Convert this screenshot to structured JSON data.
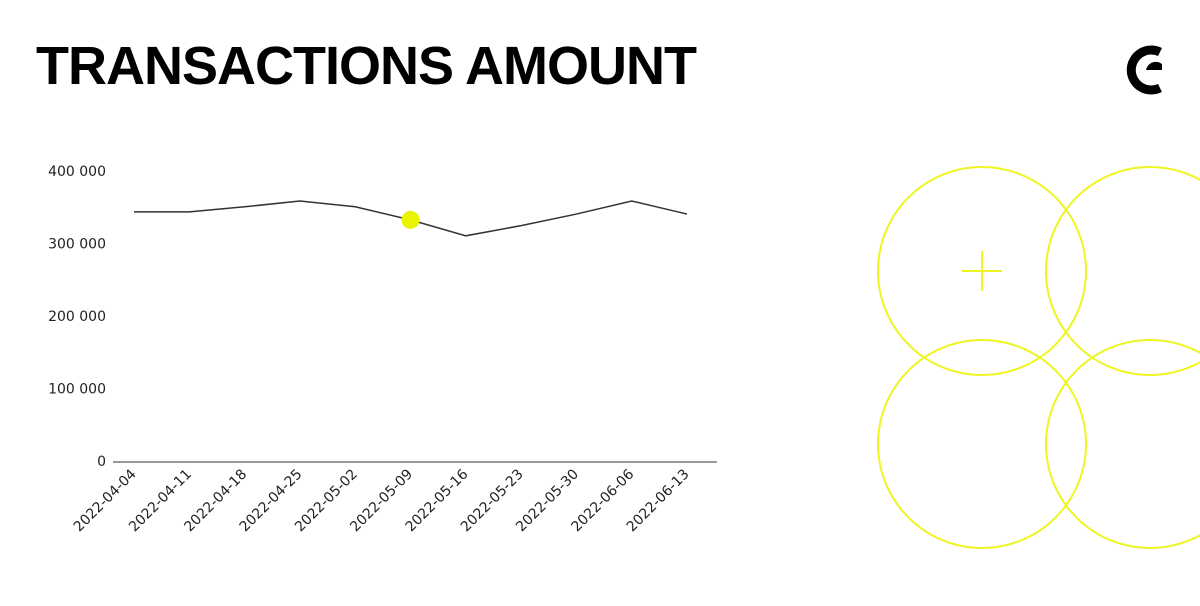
{
  "chart_data": {
    "type": "line",
    "title": "TRANSACTIONS AMOUNT",
    "categories": [
      "2022-04-04",
      "2022-04-11",
      "2022-04-18",
      "2022-04-25",
      "2022-05-02",
      "2022-05-09",
      "2022-05-16",
      "2022-05-23",
      "2022-05-30",
      "2022-06-06",
      "2022-06-13"
    ],
    "values": [
      345000,
      345000,
      352000,
      360000,
      352000,
      334000,
      312000,
      326000,
      342000,
      360000,
      342000
    ],
    "color": "#333333",
    "highlight_index": 5,
    "highlight_color": "#e9f500",
    "ylim": [
      0,
      400000
    ],
    "yticks": [
      0,
      {
        "value": 100000,
        "label": "100 000"
      },
      {
        "value": 200000,
        "label": "200 000"
      },
      {
        "value": 300000,
        "label": "300 000"
      },
      {
        "value": 400000,
        "label": "400 000"
      }
    ],
    "grid": false
  }
}
